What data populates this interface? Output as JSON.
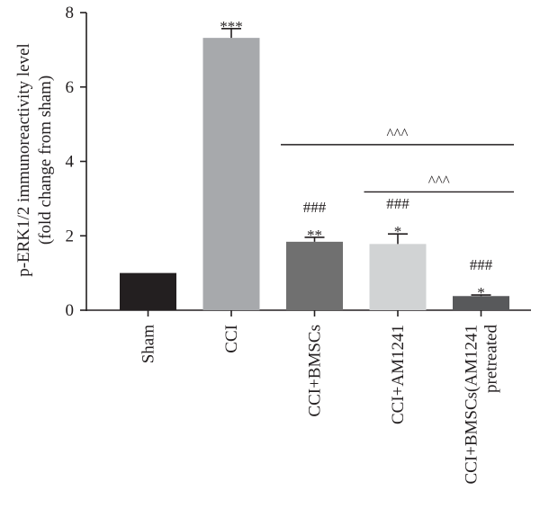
{
  "chart_data": {
    "type": "bar",
    "categories": [
      "Sham",
      "CCI",
      "CCI+BMSCs",
      "CCI+AM1241",
      "CCI+BMSCs(AM1241\npretreated"
    ],
    "values": [
      1.0,
      7.32,
      1.84,
      1.78,
      0.38
    ],
    "errors": [
      0,
      0.25,
      0.12,
      0.27,
      0.03
    ],
    "ylabel": "p-ERK1/2 immunoreactivity level\n(fold change from sham)",
    "xlabel": "",
    "ylim": [
      0,
      8
    ],
    "yticks": [
      0,
      2,
      4,
      6,
      8
    ],
    "grid": false,
    "colors": [
      "#231f20",
      "#a7a9ac",
      "#707070",
      "#d1d3d4",
      "#58595b"
    ],
    "annotations": [
      {
        "bar": 1,
        "lines": [
          "***"
        ]
      },
      {
        "bar": 2,
        "lines": [
          "###",
          "**"
        ]
      },
      {
        "bar": 3,
        "lines": [
          "###",
          "*"
        ]
      },
      {
        "bar": 4,
        "lines": [
          "###",
          "*"
        ]
      }
    ],
    "brackets": [
      {
        "from": 2,
        "to": 4,
        "y": 4.45,
        "label": "^^^"
      },
      {
        "from": 3,
        "to": 4,
        "y": 3.18,
        "label": "^^^"
      }
    ]
  }
}
